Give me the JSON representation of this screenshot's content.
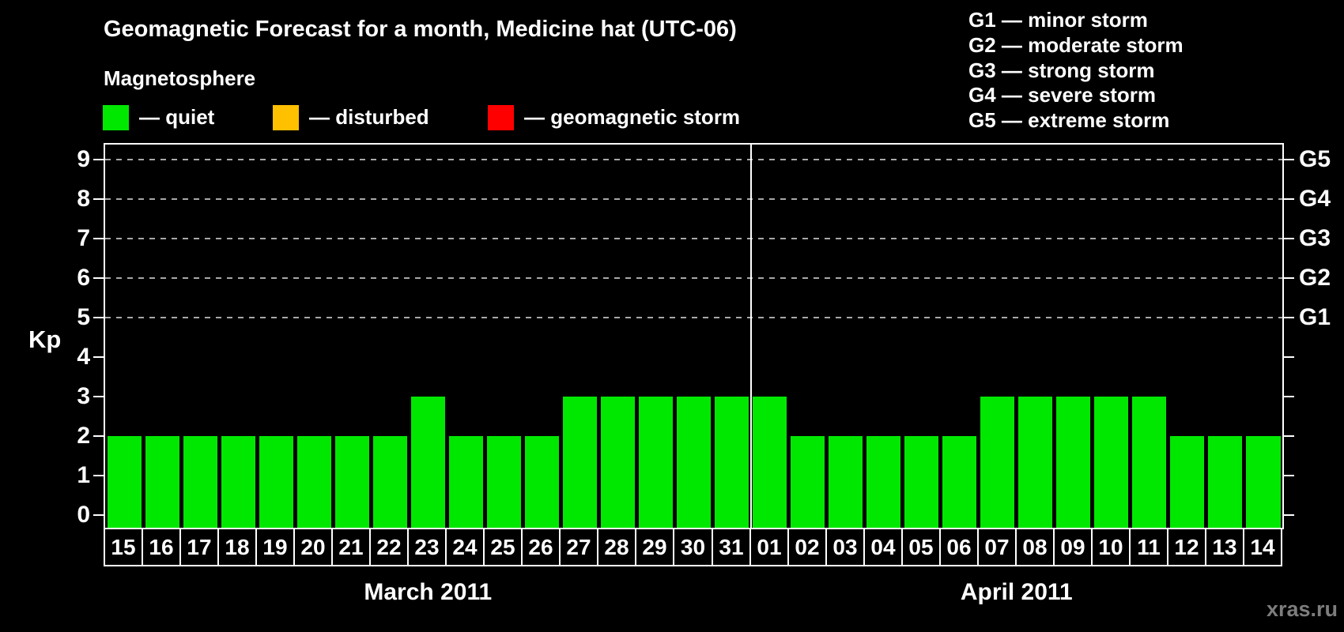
{
  "title": "Geomagnetic Forecast for a month, Medicine hat (UTC-06)",
  "subtitle": "Magnetosphere",
  "legend": {
    "items": [
      {
        "name": "quiet",
        "label": "— quiet",
        "color": "#00e800"
      },
      {
        "name": "disturbed",
        "label": "— disturbed",
        "color": "#ffc000"
      },
      {
        "name": "geomagnetic-storm",
        "label": "— geomagnetic storm",
        "color": "#ff0000"
      }
    ]
  },
  "storm_scale_legend": [
    "G1 — minor storm",
    "G2 — moderate storm",
    "G3 — strong storm",
    "G4 — severe storm",
    "G5 — extreme storm"
  ],
  "watermark": "xras.ru",
  "chart_data": {
    "type": "bar",
    "title": "Geomagnetic Forecast for a month, Medicine hat (UTC-06)",
    "ylabel": "Kp",
    "ylim": [
      0,
      9
    ],
    "yticks": [
      0,
      1,
      2,
      3,
      4,
      5,
      6,
      7,
      8,
      9
    ],
    "grid_levels": [
      5,
      6,
      7,
      8,
      9
    ],
    "grid": "dashed horizontal lines only at G-storm levels (Kp 5-9)",
    "legend_position": "top",
    "bar_color": "#00e800",
    "bar_status": "quiet",
    "right_axis": [
      {
        "label": "G1",
        "kp": 5
      },
      {
        "label": "G2",
        "kp": 6
      },
      {
        "label": "G3",
        "kp": 7
      },
      {
        "label": "G4",
        "kp": 8
      },
      {
        "label": "G5",
        "kp": 9
      }
    ],
    "months": [
      {
        "label": "March 2011",
        "days": [
          "15",
          "16",
          "17",
          "18",
          "19",
          "20",
          "21",
          "22",
          "23",
          "24",
          "25",
          "26",
          "27",
          "28",
          "29",
          "30",
          "31"
        ],
        "values": [
          2,
          2,
          2,
          2,
          2,
          2,
          2,
          2,
          3,
          2,
          2,
          2,
          3,
          3,
          3,
          3,
          3
        ]
      },
      {
        "label": "April 2011",
        "days": [
          "01",
          "02",
          "03",
          "04",
          "05",
          "06",
          "07",
          "08",
          "09",
          "10",
          "11",
          "12",
          "13",
          "14"
        ],
        "values": [
          3,
          2,
          2,
          2,
          2,
          2,
          3,
          3,
          3,
          3,
          3,
          2,
          2,
          2
        ]
      }
    ]
  }
}
